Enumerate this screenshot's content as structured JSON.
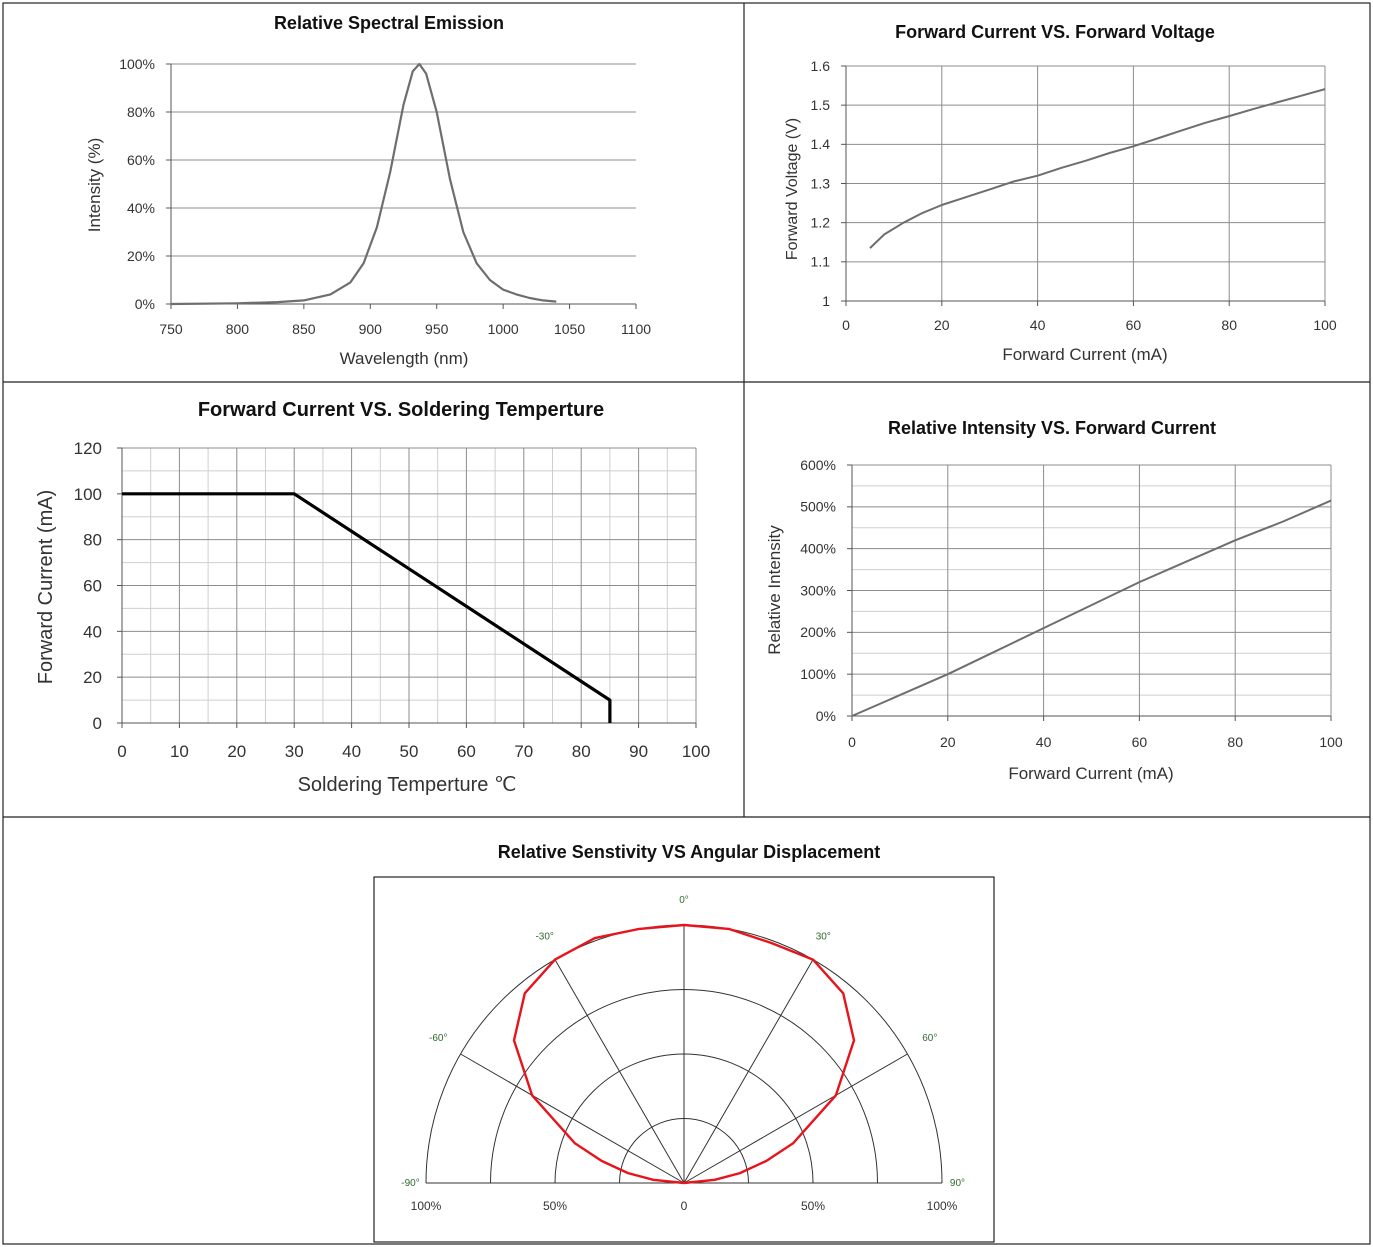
{
  "colors": {
    "border": "#222222",
    "grid": "#8c8c8c",
    "curve": "#6e6e6e",
    "derating": "#000000",
    "polar_curve": "#e8141b",
    "polar_angle_label": "#2e6b2e"
  },
  "chart_data": [
    {
      "type": "line",
      "title": "Relative Spectral Emission",
      "xlabel": "Wavelength (nm)",
      "ylabel": "Intensity (%)",
      "xlim": [
        750,
        1100
      ],
      "ylim": [
        0,
        100
      ],
      "x_ticks": [
        "750",
        "800",
        "850",
        "900",
        "950",
        "1000",
        "1050",
        "1100"
      ],
      "y_ticks": [
        "0%",
        "20%",
        "40%",
        "60%",
        "80%",
        "100%"
      ],
      "grid": "horizontal",
      "series": [
        {
          "x": [
            750,
            800,
            830,
            850,
            870,
            885,
            895,
            905,
            915,
            925,
            932,
            937,
            942,
            950,
            960,
            970,
            980,
            990,
            1000,
            1010,
            1020,
            1030,
            1040
          ],
          "y": [
            0,
            0.3,
            0.8,
            1.5,
            4,
            9,
            17,
            32,
            55,
            83,
            97,
            100,
            96,
            80,
            52,
            30,
            17,
            10,
            6,
            4,
            2.5,
            1.5,
            1
          ]
        }
      ]
    },
    {
      "type": "line",
      "title": "Forward Current VS. Forward Voltage",
      "xlabel": "Forward Current (mA)",
      "ylabel": "Forward Voltage (V)",
      "xlim": [
        0,
        100
      ],
      "ylim": [
        1,
        1.6
      ],
      "x_ticks": [
        "0",
        "20",
        "40",
        "60",
        "80",
        "100"
      ],
      "y_ticks": [
        "1",
        "1.1",
        "1.2",
        "1.3",
        "1.4",
        "1.5",
        "1.6"
      ],
      "grid": "both",
      "series": [
        {
          "x": [
            5,
            8,
            12,
            16,
            20,
            25,
            30,
            35,
            40,
            45,
            50,
            55,
            60,
            65,
            70,
            75,
            80,
            85,
            90,
            95,
            100
          ],
          "y": [
            1.135,
            1.17,
            1.2,
            1.225,
            1.245,
            1.265,
            1.285,
            1.305,
            1.32,
            1.34,
            1.358,
            1.378,
            1.395,
            1.415,
            1.435,
            1.455,
            1.472,
            1.49,
            1.507,
            1.524,
            1.541
          ]
        }
      ]
    },
    {
      "type": "line",
      "title": "Forward Current  VS. Soldering Temperture",
      "xlabel": "Soldering Temperture ℃",
      "ylabel": "Forward Current (mA)",
      "xlim": [
        0,
        100
      ],
      "ylim": [
        0,
        120
      ],
      "x_ticks": [
        "0",
        "10",
        "20",
        "30",
        "40",
        "50",
        "60",
        "70",
        "80",
        "90",
        "100"
      ],
      "y_ticks": [
        "0",
        "20",
        "40",
        "60",
        "80",
        "100",
        "120"
      ],
      "grid": "both",
      "series": [
        {
          "x": [
            0,
            30,
            85,
            85
          ],
          "y": [
            100,
            100,
            10,
            0
          ]
        }
      ]
    },
    {
      "type": "line",
      "title": "Relative Intensity VS. Forward Current",
      "xlabel": "Forward Current (mA)",
      "ylabel": "Relative Intensity",
      "xlim": [
        0,
        100
      ],
      "ylim": [
        0,
        600
      ],
      "x_ticks": [
        "0",
        "20",
        "40",
        "60",
        "80",
        "100"
      ],
      "y_ticks": [
        "0%",
        "100%",
        "200%",
        "300%",
        "400%",
        "500%",
        "600%"
      ],
      "grid": "both",
      "series": [
        {
          "x": [
            0,
            10,
            20,
            30,
            40,
            50,
            60,
            70,
            80,
            90,
            100
          ],
          "y": [
            0,
            50,
            100,
            155,
            210,
            265,
            320,
            370,
            420,
            465,
            515
          ]
        }
      ]
    },
    {
      "type": "line",
      "subtype": "polar",
      "title": "Relative Senstivity VS Angular Displacement",
      "angle_labels": [
        "-90°",
        "-60°",
        "-30°",
        "0°",
        "30°",
        "60°",
        "90°"
      ],
      "radius_labels": [
        "100%",
        "50%",
        "0",
        "50%",
        "100%"
      ],
      "angle_range": [
        -90,
        90
      ],
      "radius_range": [
        0,
        100
      ],
      "series": [
        {
          "angle": [
            -90,
            -84,
            -80,
            -75,
            -70,
            -60,
            -50,
            -40,
            -30,
            -20,
            -10,
            0,
            10,
            20,
            30,
            40,
            50,
            60,
            70,
            75,
            80,
            84,
            90
          ],
          "value": [
            0,
            12,
            22,
            33,
            45,
            68,
            86,
            96,
            100,
            101,
            100,
            100,
            100,
            99,
            100,
            96,
            86,
            68,
            45,
            33,
            22,
            12,
            0
          ]
        }
      ]
    }
  ]
}
